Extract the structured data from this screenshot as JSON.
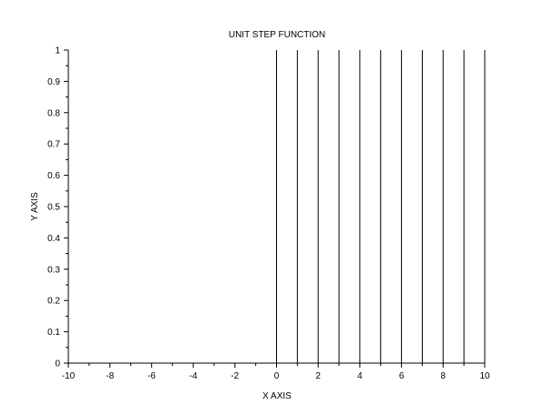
{
  "chart_data": {
    "type": "bar",
    "title": "UNIT STEP FUNCTION",
    "xlabel": "X AXIS",
    "ylabel": "Y AXIS",
    "xlim": [
      -10,
      10
    ],
    "ylim": [
      0,
      1
    ],
    "x_ticks": [
      -10,
      -8,
      -6,
      -4,
      -2,
      0,
      2,
      4,
      6,
      8,
      10
    ],
    "x_tick_labels": [
      "-10",
      "-8",
      "-6",
      "-4",
      "-2",
      "0",
      "2",
      "4",
      "6",
      "8",
      "10"
    ],
    "x_minor_step": 1,
    "y_ticks": [
      0,
      0.1,
      0.2,
      0.3,
      0.4,
      0.5,
      0.6,
      0.7,
      0.8,
      0.9,
      1
    ],
    "y_tick_labels": [
      "0",
      "0.1",
      "0.2",
      "0.3",
      "0.4",
      "0.5",
      "0.6",
      "0.7",
      "0.8",
      "0.9",
      "1"
    ],
    "y_minor_step": 0.05,
    "grid": false,
    "legend": "none",
    "series": [
      {
        "style": "stem",
        "x": [
          0,
          1,
          2,
          3,
          4,
          5,
          6,
          7,
          8,
          9,
          10
        ],
        "y": [
          1,
          1,
          1,
          1,
          1,
          1,
          1,
          1,
          1,
          1,
          1
        ],
        "color": "#000000"
      }
    ],
    "axis_color": "#000000"
  }
}
